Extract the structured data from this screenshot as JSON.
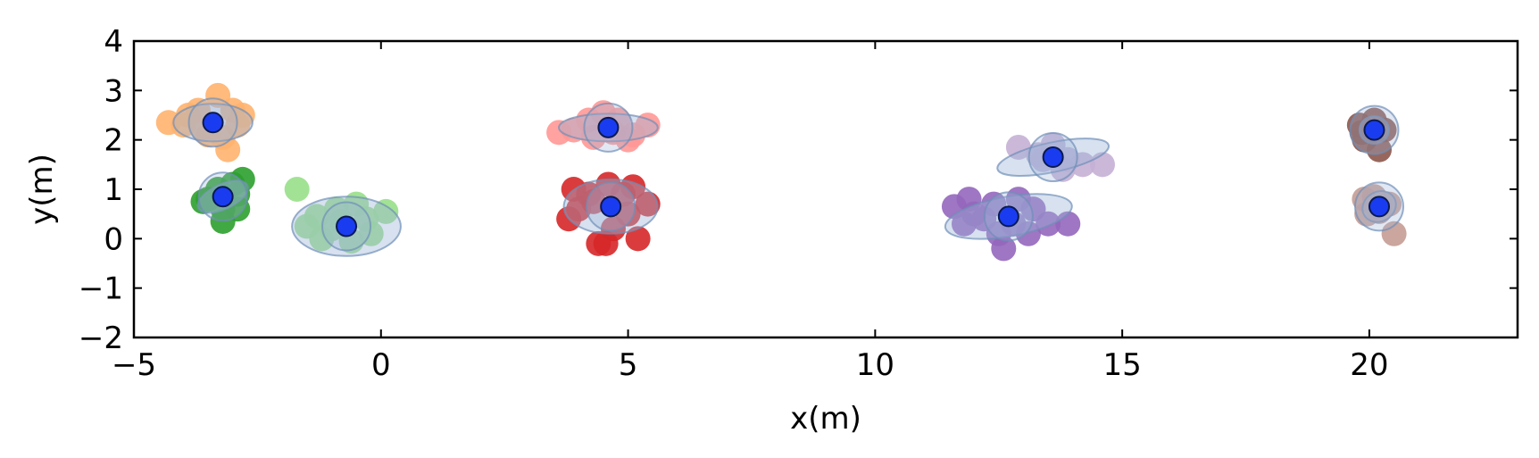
{
  "chart_data": {
    "type": "scatter",
    "title": "",
    "xlabel": "x(m)",
    "ylabel": "y(m)",
    "xlim": [
      -5,
      23
    ],
    "ylim": [
      -2,
      4
    ],
    "xticks": [
      -5,
      0,
      5,
      10,
      15,
      20
    ],
    "xtick_labels": [
      "−5",
      "0",
      "5",
      "10",
      "15",
      "20"
    ],
    "yticks": [
      -2,
      -1,
      0,
      1,
      2,
      3,
      4
    ],
    "ytick_labels": [
      "−2",
      "−1",
      "0",
      "1",
      "2",
      "3",
      "4"
    ],
    "grid": false,
    "legend": "none",
    "center_color": "#1a3cf0",
    "ellipse_color": "#9bb4d6",
    "clusters": [
      {
        "color": "#ffb26e",
        "center": [
          -3.4,
          2.35
        ],
        "ellipse": {
          "rx": 0.8,
          "ry": 0.38,
          "angle": 0
        },
        "points": [
          [
            -4.3,
            2.35
          ],
          [
            -3.9,
            2.5
          ],
          [
            -3.6,
            2.2
          ],
          [
            -3.3,
            2.9
          ],
          [
            -3.0,
            2.6
          ],
          [
            -2.9,
            2.3
          ],
          [
            -3.1,
            1.8
          ],
          [
            -3.5,
            2.1
          ],
          [
            -2.8,
            2.5
          ],
          [
            -3.7,
            2.6
          ],
          [
            -4.0,
            2.3
          ],
          [
            -3.2,
            2.05
          ]
        ]
      },
      {
        "color": "#2ca02c",
        "center": [
          -3.2,
          0.85
        ],
        "ellipse": {
          "rx": 0.55,
          "ry": 0.25,
          "angle": -25
        },
        "points": [
          [
            -3.5,
            0.8
          ],
          [
            -3.2,
            0.6
          ],
          [
            -3.0,
            1.1
          ],
          [
            -2.9,
            0.9
          ],
          [
            -3.3,
            1.0
          ],
          [
            -3.2,
            0.35
          ],
          [
            -2.8,
            1.2
          ],
          [
            -3.6,
            0.75
          ],
          [
            -2.9,
            0.6
          ]
        ]
      },
      {
        "color": "#98df8a",
        "center": [
          -0.7,
          0.25
        ],
        "ellipse": {
          "rx": 1.1,
          "ry": 0.6,
          "angle": 0
        },
        "points": [
          [
            -1.7,
            1.0
          ],
          [
            -1.5,
            0.25
          ],
          [
            -1.2,
            0.0
          ],
          [
            -0.9,
            0.6
          ],
          [
            -0.5,
            0.7
          ],
          [
            -0.3,
            0.4
          ],
          [
            0.1,
            0.55
          ],
          [
            -0.6,
            -0.05
          ],
          [
            -1.0,
            0.2
          ],
          [
            -0.2,
            0.1
          ],
          [
            -1.3,
            0.45
          ],
          [
            -0.8,
            0.35
          ]
        ]
      },
      {
        "color": "#ff9896",
        "center": [
          4.6,
          2.25
        ],
        "ellipse": {
          "rx": 1.0,
          "ry": 0.28,
          "angle": 0
        },
        "points": [
          [
            3.6,
            2.15
          ],
          [
            3.9,
            2.2
          ],
          [
            4.2,
            2.4
          ],
          [
            4.5,
            2.55
          ],
          [
            4.8,
            2.4
          ],
          [
            5.1,
            2.1
          ],
          [
            5.4,
            2.3
          ],
          [
            5.0,
            2.0
          ],
          [
            4.3,
            2.05
          ],
          [
            4.7,
            2.15
          ]
        ]
      },
      {
        "color": "#d62728",
        "center": [
          4.65,
          0.65
        ],
        "ellipse": {
          "rx": 0.95,
          "ry": 0.55,
          "angle": 0
        },
        "points": [
          [
            3.8,
            0.4
          ],
          [
            3.9,
            1.0
          ],
          [
            4.2,
            0.9
          ],
          [
            4.4,
            -0.1
          ],
          [
            4.6,
            1.1
          ],
          [
            4.9,
            0.9
          ],
          [
            5.2,
            0.0
          ],
          [
            5.4,
            0.7
          ],
          [
            4.0,
            0.6
          ],
          [
            4.7,
            0.2
          ],
          [
            5.0,
            0.5
          ],
          [
            4.3,
            0.75
          ],
          [
            4.55,
            -0.1
          ],
          [
            5.1,
            1.05
          ]
        ]
      },
      {
        "color": "#c5b0d5",
        "center": [
          13.6,
          1.65
        ],
        "ellipse": {
          "rx": 1.15,
          "ry": 0.3,
          "angle": -12
        },
        "points": [
          [
            12.9,
            1.85
          ],
          [
            13.3,
            1.7
          ],
          [
            13.6,
            1.9
          ],
          [
            13.9,
            1.6
          ],
          [
            14.2,
            1.5
          ],
          [
            14.6,
            1.5
          ],
          [
            13.8,
            1.4
          ],
          [
            13.4,
            1.6
          ]
        ]
      },
      {
        "color": "#9467bd",
        "center": [
          12.7,
          0.45
        ],
        "ellipse": {
          "rx": 1.3,
          "ry": 0.4,
          "angle": -10
        },
        "points": [
          [
            11.6,
            0.65
          ],
          [
            11.9,
            0.8
          ],
          [
            12.2,
            0.4
          ],
          [
            12.5,
            0.1
          ],
          [
            12.6,
            -0.2
          ],
          [
            12.9,
            0.8
          ],
          [
            13.2,
            0.6
          ],
          [
            13.5,
            0.3
          ],
          [
            13.9,
            0.3
          ],
          [
            12.0,
            0.5
          ],
          [
            12.8,
            0.3
          ],
          [
            13.1,
            0.1
          ],
          [
            12.4,
            0.7
          ],
          [
            11.8,
            0.3
          ]
        ]
      },
      {
        "color": "#8c564b",
        "center": [
          20.1,
          2.2
        ],
        "ellipse": {
          "rx": 0.3,
          "ry": 0.28,
          "angle": 0
        },
        "points": [
          [
            19.8,
            2.3
          ],
          [
            19.9,
            2.0
          ],
          [
            20.1,
            2.4
          ],
          [
            20.3,
            2.2
          ],
          [
            20.2,
            1.8
          ],
          [
            19.85,
            2.15
          ]
        ]
      },
      {
        "color": "#c49c94",
        "center": [
          20.2,
          0.65
        ],
        "ellipse": {
          "rx": 0.35,
          "ry": 0.3,
          "angle": -30
        },
        "points": [
          [
            19.9,
            0.8
          ],
          [
            19.95,
            0.5
          ],
          [
            20.2,
            0.55
          ],
          [
            20.4,
            0.7
          ],
          [
            20.5,
            0.1
          ],
          [
            20.1,
            0.85
          ]
        ]
      }
    ]
  }
}
